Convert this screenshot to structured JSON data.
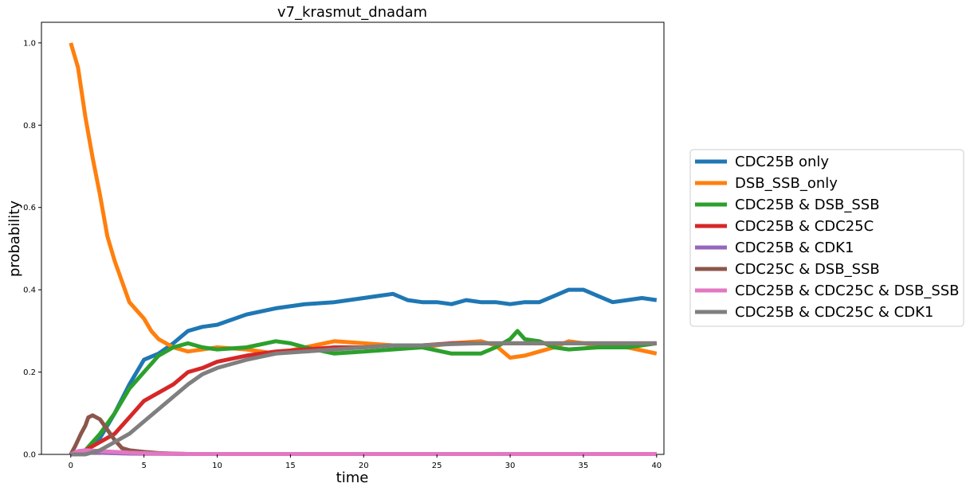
{
  "chart_data": {
    "type": "line",
    "title": "v7_krasmut_dnadam",
    "xlabel": "time",
    "ylabel": "probability",
    "xlim": [
      -2,
      40.5
    ],
    "ylim": [
      0,
      1.05
    ],
    "xticks": [
      0,
      5,
      10,
      15,
      20,
      25,
      30,
      35,
      40
    ],
    "yticks": [
      0.0,
      0.2,
      0.4,
      0.6,
      0.8,
      1.0
    ],
    "xtick_labels": [
      "0",
      "5",
      "10",
      "15",
      "20",
      "25",
      "30",
      "35",
      "40"
    ],
    "ytick_labels": [
      "0.0",
      "0.2",
      "0.4",
      "0.6",
      "0.8",
      "1.0"
    ],
    "grid": false,
    "legend_position": "right outside",
    "series": [
      {
        "name": "CDC25B only",
        "color": "#1f77b4",
        "points": [
          [
            0,
            0
          ],
          [
            1,
            0.005
          ],
          [
            2,
            0.04
          ],
          [
            3,
            0.1
          ],
          [
            4,
            0.17
          ],
          [
            5,
            0.23
          ],
          [
            6,
            0.245
          ],
          [
            7,
            0.27
          ],
          [
            8,
            0.3
          ],
          [
            9,
            0.31
          ],
          [
            10,
            0.315
          ],
          [
            12,
            0.34
          ],
          [
            14,
            0.355
          ],
          [
            16,
            0.365
          ],
          [
            18,
            0.37
          ],
          [
            20,
            0.38
          ],
          [
            21,
            0.385
          ],
          [
            22,
            0.39
          ],
          [
            23,
            0.375
          ],
          [
            24,
            0.37
          ],
          [
            25,
            0.37
          ],
          [
            26,
            0.365
          ],
          [
            27,
            0.375
          ],
          [
            28,
            0.37
          ],
          [
            29,
            0.37
          ],
          [
            30,
            0.365
          ],
          [
            31,
            0.37
          ],
          [
            32,
            0.37
          ],
          [
            33,
            0.385
          ],
          [
            34,
            0.4
          ],
          [
            35,
            0.4
          ],
          [
            36,
            0.385
          ],
          [
            37,
            0.37
          ],
          [
            38,
            0.375
          ],
          [
            39,
            0.38
          ],
          [
            40,
            0.375
          ]
        ]
      },
      {
        "name": "DSB_SSB_only",
        "color": "#ff7f0e",
        "points": [
          [
            0,
            1.0
          ],
          [
            0.5,
            0.94
          ],
          [
            1,
            0.82
          ],
          [
            1.5,
            0.72
          ],
          [
            2,
            0.63
          ],
          [
            2.5,
            0.53
          ],
          [
            3,
            0.47
          ],
          [
            3.5,
            0.42
          ],
          [
            4,
            0.37
          ],
          [
            5,
            0.33
          ],
          [
            5.5,
            0.3
          ],
          [
            6,
            0.28
          ],
          [
            7,
            0.26
          ],
          [
            8,
            0.25
          ],
          [
            10,
            0.26
          ],
          [
            12,
            0.255
          ],
          [
            14,
            0.245
          ],
          [
            16,
            0.26
          ],
          [
            18,
            0.275
          ],
          [
            20,
            0.27
          ],
          [
            22,
            0.265
          ],
          [
            24,
            0.26
          ],
          [
            26,
            0.27
          ],
          [
            28,
            0.275
          ],
          [
            29,
            0.265
          ],
          [
            30,
            0.235
          ],
          [
            31,
            0.24
          ],
          [
            32,
            0.25
          ],
          [
            33,
            0.26
          ],
          [
            34,
            0.275
          ],
          [
            35,
            0.27
          ],
          [
            36,
            0.265
          ],
          [
            38,
            0.26
          ],
          [
            40,
            0.245
          ]
        ]
      },
      {
        "name": "CDC25B & DSB_SSB",
        "color": "#2ca02c",
        "points": [
          [
            0,
            0
          ],
          [
            1,
            0.01
          ],
          [
            2,
            0.05
          ],
          [
            3,
            0.1
          ],
          [
            4,
            0.16
          ],
          [
            5,
            0.2
          ],
          [
            6,
            0.24
          ],
          [
            7,
            0.26
          ],
          [
            8,
            0.27
          ],
          [
            9,
            0.26
          ],
          [
            10,
            0.255
          ],
          [
            12,
            0.26
          ],
          [
            14,
            0.275
          ],
          [
            15,
            0.27
          ],
          [
            16,
            0.26
          ],
          [
            18,
            0.245
          ],
          [
            20,
            0.25
          ],
          [
            22,
            0.255
          ],
          [
            24,
            0.26
          ],
          [
            26,
            0.245
          ],
          [
            28,
            0.245
          ],
          [
            29,
            0.26
          ],
          [
            30,
            0.28
          ],
          [
            30.5,
            0.3
          ],
          [
            31,
            0.28
          ],
          [
            32,
            0.275
          ],
          [
            33,
            0.26
          ],
          [
            34,
            0.255
          ],
          [
            36,
            0.26
          ],
          [
            38,
            0.26
          ],
          [
            40,
            0.27
          ]
        ]
      },
      {
        "name": "CDC25B & CDC25C",
        "color": "#d62728",
        "points": [
          [
            0,
            0
          ],
          [
            1,
            0.01
          ],
          [
            2,
            0.03
          ],
          [
            3,
            0.05
          ],
          [
            4,
            0.09
          ],
          [
            5,
            0.13
          ],
          [
            6,
            0.15
          ],
          [
            7,
            0.17
          ],
          [
            8,
            0.2
          ],
          [
            9,
            0.21
          ],
          [
            10,
            0.225
          ],
          [
            12,
            0.24
          ],
          [
            14,
            0.25
          ],
          [
            16,
            0.255
          ],
          [
            18,
            0.26
          ],
          [
            20,
            0.26
          ],
          [
            22,
            0.265
          ],
          [
            24,
            0.265
          ],
          [
            26,
            0.27
          ],
          [
            28,
            0.27
          ],
          [
            30,
            0.27
          ],
          [
            35,
            0.27
          ],
          [
            40,
            0.27
          ]
        ]
      },
      {
        "name": "CDC25B & CDK1",
        "color": "#9467bd",
        "points": [
          [
            0,
            0
          ],
          [
            0.5,
            0.003
          ],
          [
            1,
            0.004
          ],
          [
            2,
            0.004
          ],
          [
            4,
            0.002
          ],
          [
            8,
            0.001
          ],
          [
            40,
            0.001
          ]
        ]
      },
      {
        "name": "CDC25C & DSB_SSB",
        "color": "#8c564b",
        "points": [
          [
            0,
            0
          ],
          [
            0.3,
            0.02
          ],
          [
            0.7,
            0.05
          ],
          [
            1,
            0.07
          ],
          [
            1.2,
            0.09
          ],
          [
            1.5,
            0.095
          ],
          [
            2,
            0.085
          ],
          [
            2.5,
            0.06
          ],
          [
            3,
            0.035
          ],
          [
            3.5,
            0.015
          ],
          [
            4,
            0.01
          ],
          [
            5,
            0.006
          ],
          [
            6,
            0.003
          ],
          [
            7,
            0.002
          ],
          [
            8,
            0.001
          ],
          [
            40,
            0.001
          ]
        ]
      },
      {
        "name": "CDC25B & CDC25C & DSB_SSB",
        "color": "#e377c2",
        "points": [
          [
            0,
            0
          ],
          [
            0.5,
            0.008
          ],
          [
            1,
            0.01
          ],
          [
            2,
            0.008
          ],
          [
            3,
            0.006
          ],
          [
            4,
            0.004
          ],
          [
            6,
            0.002
          ],
          [
            8,
            0.001
          ],
          [
            40,
            0.001
          ]
        ]
      },
      {
        "name": "CDC25B & CDC25C & CDK1",
        "color": "#7f7f7f",
        "points": [
          [
            0,
            0
          ],
          [
            1,
            0
          ],
          [
            2,
            0.01
          ],
          [
            3,
            0.03
          ],
          [
            4,
            0.05
          ],
          [
            5,
            0.08
          ],
          [
            6,
            0.11
          ],
          [
            7,
            0.14
          ],
          [
            8,
            0.17
          ],
          [
            9,
            0.195
          ],
          [
            10,
            0.21
          ],
          [
            12,
            0.23
          ],
          [
            14,
            0.245
          ],
          [
            16,
            0.25
          ],
          [
            18,
            0.255
          ],
          [
            20,
            0.26
          ],
          [
            22,
            0.265
          ],
          [
            24,
            0.265
          ],
          [
            26,
            0.268
          ],
          [
            28,
            0.27
          ],
          [
            30,
            0.27
          ],
          [
            35,
            0.27
          ],
          [
            40,
            0.27
          ]
        ]
      }
    ]
  }
}
